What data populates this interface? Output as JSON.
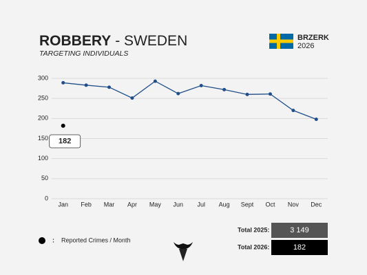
{
  "chart_data": {
    "type": "line",
    "title": "ROBBERY",
    "title_suffix": "- SWEDEN",
    "subtitle": "TARGETING INDIVIDUALS",
    "brand": "BRZERK",
    "year": "2026",
    "categories": [
      "Jan",
      "Feb",
      "Mar",
      "Apr",
      "May",
      "Jun",
      "Jul",
      "Aug",
      "Sept",
      "Oct",
      "Nov",
      "Dec"
    ],
    "series": [
      {
        "color": "#1f4e89",
        "values": [
          289,
          283,
          278,
          251,
          293,
          262,
          282,
          272,
          260,
          261,
          220,
          198
        ]
      },
      {
        "color": "#000000",
        "values": [
          182,
          null,
          null,
          null,
          null,
          null,
          null,
          null,
          null,
          null,
          null,
          null
        ]
      }
    ],
    "ylim": [
      0,
      300
    ],
    "yticks": [
      0,
      50,
      100,
      150,
      200,
      250,
      300
    ],
    "grid": true,
    "legend_label": "Reported Crimes / Month",
    "totals": [
      {
        "label": "Total 2025:",
        "value": "3 149",
        "color": "#555555"
      },
      {
        "label": "Total 2026:",
        "value": "182",
        "color": "#000000"
      }
    ]
  }
}
